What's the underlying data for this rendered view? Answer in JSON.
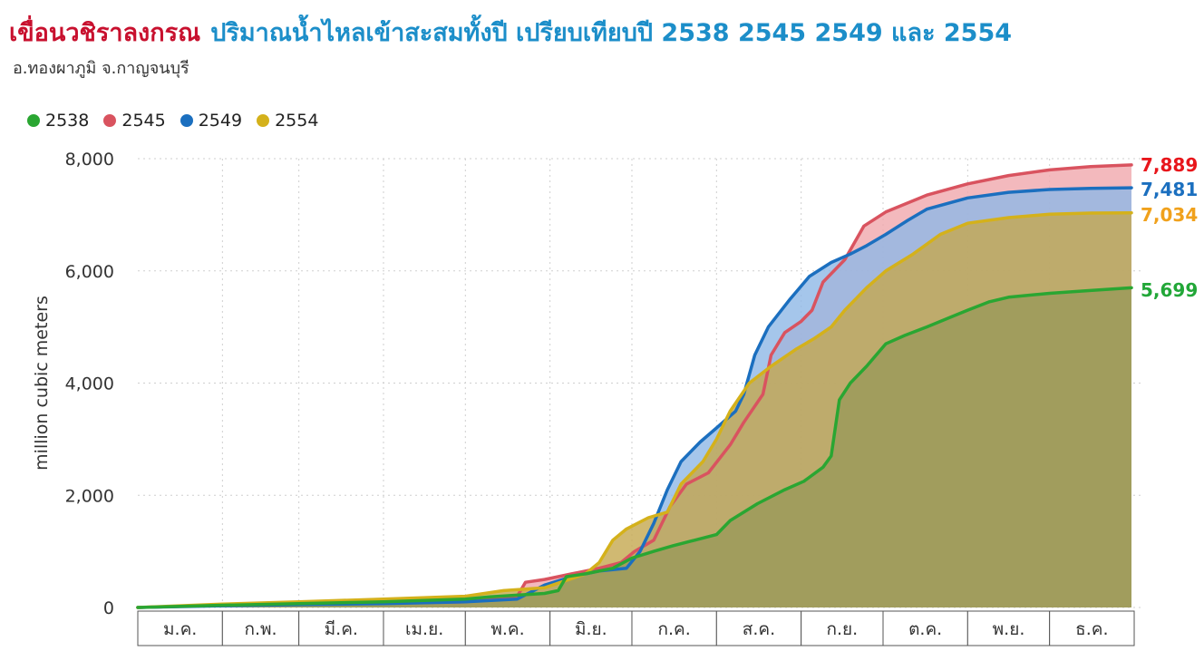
{
  "header": {
    "title_main": "เขื่อนวชิราลงกรณ",
    "title_sub": "ปริมาณน้ำไหลเข้าสะสมทั้งปี เปรียบเทียบปี 2538 2545 2549 และ 2554",
    "subtitle": "อ.ทองผาภูมิ จ.กาญจนบุรี"
  },
  "chart_data": {
    "type": "area",
    "title": "เขื่อนวชิราลงกรณ ปริมาณน้ำไหลเข้าสะสมทั้งปี เปรียบเทียบปี 2538 2545 2549 และ 2554",
    "subtitle": "อ.ทองผาภูมิ จ.กาญจนบุรี",
    "xlabel": "",
    "ylabel": "million cubic meters",
    "ylim": [
      0,
      8000
    ],
    "yticks": [
      0,
      2000,
      4000,
      6000,
      8000
    ],
    "ytick_labels": [
      "0",
      "2,000",
      "4,000",
      "6,000",
      "8,000"
    ],
    "months": [
      "ม.ค.",
      "ก.พ.",
      "มี.ค.",
      "เม.ย.",
      "พ.ค.",
      "มิ.ย.",
      "ก.ค.",
      "ส.ค.",
      "ก.ย.",
      "ต.ค.",
      "พ.ย.",
      "ธ.ค."
    ],
    "x_domain": [
      1,
      365
    ],
    "grid": "dotted",
    "legend_position": "top-left",
    "series": [
      {
        "name": "2538",
        "color": "#2aa632",
        "fill": "#9a9a5a",
        "end_label": "5,699",
        "end_value": 5699,
        "points": [
          [
            1,
            0
          ],
          [
            32,
            40
          ],
          [
            60,
            70
          ],
          [
            91,
            100
          ],
          [
            121,
            150
          ],
          [
            130,
            190
          ],
          [
            150,
            250
          ],
          [
            155,
            300
          ],
          [
            158,
            550
          ],
          [
            165,
            600
          ],
          [
            175,
            700
          ],
          [
            182,
            880
          ],
          [
            190,
            1000
          ],
          [
            197,
            1100
          ],
          [
            205,
            1200
          ],
          [
            213,
            1300
          ],
          [
            218,
            1550
          ],
          [
            228,
            1850
          ],
          [
            238,
            2100
          ],
          [
            245,
            2250
          ],
          [
            252,
            2500
          ],
          [
            255,
            2700
          ],
          [
            258,
            3700
          ],
          [
            262,
            4000
          ],
          [
            268,
            4300
          ],
          [
            275,
            4700
          ],
          [
            282,
            4850
          ],
          [
            290,
            5000
          ],
          [
            300,
            5200
          ],
          [
            305,
            5300
          ],
          [
            313,
            5450
          ],
          [
            320,
            5530
          ],
          [
            335,
            5600
          ],
          [
            350,
            5650
          ],
          [
            365,
            5699
          ]
        ]
      },
      {
        "name": "2545",
        "color": "#d9535f",
        "fill": "#f0a7ad",
        "end_label": "7,889",
        "end_value": 7889,
        "points": [
          [
            1,
            0
          ],
          [
            32,
            40
          ],
          [
            60,
            60
          ],
          [
            91,
            80
          ],
          [
            121,
            100
          ],
          [
            140,
            200
          ],
          [
            143,
            450
          ],
          [
            150,
            500
          ],
          [
            160,
            600
          ],
          [
            170,
            700
          ],
          [
            178,
            800
          ],
          [
            183,
            1000
          ],
          [
            190,
            1200
          ],
          [
            196,
            1800
          ],
          [
            202,
            2200
          ],
          [
            210,
            2400
          ],
          [
            218,
            2900
          ],
          [
            223,
            3300
          ],
          [
            230,
            3800
          ],
          [
            233,
            4500
          ],
          [
            238,
            4900
          ],
          [
            244,
            5100
          ],
          [
            248,
            5300
          ],
          [
            252,
            5800
          ],
          [
            260,
            6200
          ],
          [
            267,
            6800
          ],
          [
            275,
            7050
          ],
          [
            290,
            7350
          ],
          [
            305,
            7550
          ],
          [
            320,
            7700
          ],
          [
            335,
            7800
          ],
          [
            350,
            7860
          ],
          [
            365,
            7889
          ]
        ]
      },
      {
        "name": "2549",
        "color": "#1b6fbf",
        "fill": "#8fb8e6",
        "end_label": "7,481",
        "end_value": 7481,
        "points": [
          [
            1,
            0
          ],
          [
            32,
            30
          ],
          [
            60,
            50
          ],
          [
            91,
            70
          ],
          [
            121,
            100
          ],
          [
            140,
            150
          ],
          [
            150,
            400
          ],
          [
            160,
            550
          ],
          [
            170,
            650
          ],
          [
            180,
            700
          ],
          [
            185,
            1000
          ],
          [
            190,
            1500
          ],
          [
            195,
            2100
          ],
          [
            200,
            2600
          ],
          [
            207,
            2950
          ],
          [
            213,
            3200
          ],
          [
            220,
            3500
          ],
          [
            223,
            3800
          ],
          [
            227,
            4500
          ],
          [
            232,
            5000
          ],
          [
            240,
            5500
          ],
          [
            247,
            5900
          ],
          [
            255,
            6150
          ],
          [
            262,
            6300
          ],
          [
            268,
            6450
          ],
          [
            275,
            6650
          ],
          [
            283,
            6900
          ],
          [
            290,
            7100
          ],
          [
            305,
            7300
          ],
          [
            320,
            7400
          ],
          [
            335,
            7450
          ],
          [
            350,
            7470
          ],
          [
            365,
            7481
          ]
        ]
      },
      {
        "name": "2554",
        "color": "#d4b11b",
        "fill": "#c4a84f",
        "end_label": "7,034",
        "end_value": 7034,
        "points": [
          [
            1,
            0
          ],
          [
            32,
            60
          ],
          [
            60,
            100
          ],
          [
            91,
            150
          ],
          [
            121,
            200
          ],
          [
            135,
            300
          ],
          [
            150,
            350
          ],
          [
            165,
            600
          ],
          [
            170,
            800
          ],
          [
            175,
            1200
          ],
          [
            180,
            1400
          ],
          [
            188,
            1600
          ],
          [
            195,
            1700
          ],
          [
            200,
            2200
          ],
          [
            208,
            2600
          ],
          [
            213,
            3000
          ],
          [
            218,
            3500
          ],
          [
            225,
            4000
          ],
          [
            233,
            4300
          ],
          [
            242,
            4600
          ],
          [
            249,
            4800
          ],
          [
            255,
            5000
          ],
          [
            260,
            5300
          ],
          [
            268,
            5700
          ],
          [
            275,
            6000
          ],
          [
            285,
            6300
          ],
          [
            295,
            6650
          ],
          [
            305,
            6850
          ],
          [
            320,
            6950
          ],
          [
            335,
            7010
          ],
          [
            350,
            7030
          ],
          [
            365,
            7034
          ]
        ]
      }
    ]
  }
}
